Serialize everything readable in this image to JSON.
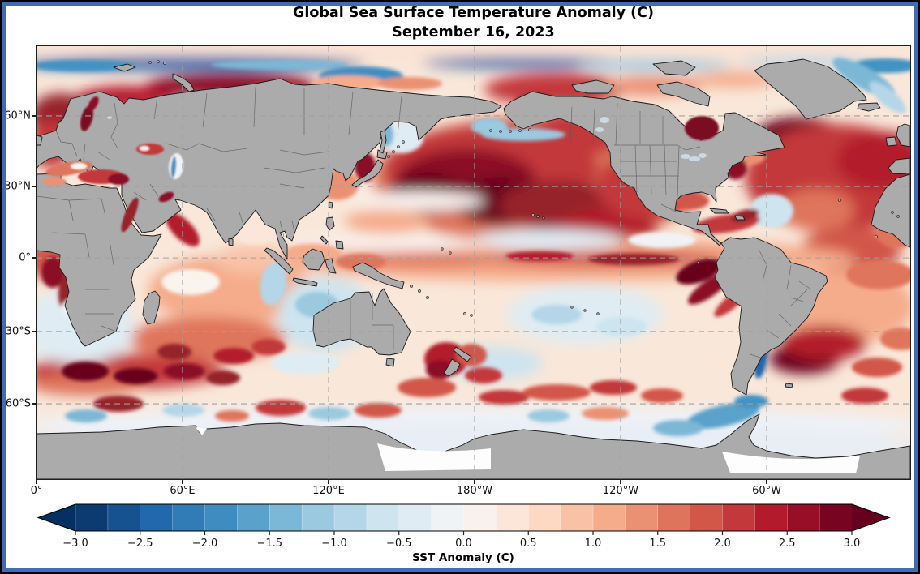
{
  "figure": {
    "title_line1": "Global Sea Surface Temperature Anomaly (C)",
    "title_line2": "September 16, 2023"
  },
  "map": {
    "land_color": "#ababab",
    "coast_color": "#1a1a1a",
    "inner_border_color": "#575757",
    "ocean_base_color": "#f9e7d9",
    "grid_color": "#a0a0a0",
    "yaxis": [
      {
        "label": "60°N",
        "pct": 16.1
      },
      {
        "label": "30°N",
        "pct": 32.4
      },
      {
        "label": "0°",
        "pct": 48.9
      },
      {
        "label": "30°S",
        "pct": 65.9
      },
      {
        "label": "60°S",
        "pct": 82.6
      }
    ],
    "xaxis": [
      {
        "label": "0°",
        "pct": 0.0
      },
      {
        "label": "60°E",
        "pct": 16.71
      },
      {
        "label": "120°E",
        "pct": 33.43
      },
      {
        "label": "180°W",
        "pct": 50.14
      },
      {
        "label": "120°W",
        "pct": 66.85
      },
      {
        "label": "60°W",
        "pct": 83.57
      }
    ],
    "blob_fields": "cx,cy,rx,ry,rotate,fill,soft_blur",
    "ocean_blobs": [
      [
        539,
        8,
        560,
        12,
        0,
        "#fbe3d4",
        1
      ],
      [
        190,
        21,
        215,
        9,
        0,
        "#2166ac",
        1
      ],
      [
        55,
        24,
        65,
        7,
        0,
        "#4393c3",
        0
      ],
      [
        300,
        23,
        85,
        6,
        0,
        "#7bb7d6",
        0
      ],
      [
        400,
        37,
        52,
        12,
        0,
        "#3f8dc0",
        0
      ],
      [
        600,
        20,
        125,
        7,
        0,
        "#2166ac",
        1
      ],
      [
        762,
        23,
        95,
        7,
        0,
        "#9ac9e0",
        1
      ],
      [
        950,
        19,
        85,
        6,
        0,
        "#b4d6e8",
        1
      ],
      [
        1046,
        24,
        42,
        9,
        0,
        "#4393c3",
        0
      ],
      [
        240,
        48,
        105,
        15,
        0,
        "#8c1127",
        1
      ],
      [
        110,
        63,
        60,
        14,
        0,
        "#b2182b",
        1
      ],
      [
        60,
        95,
        26,
        15,
        0,
        "#b2182b",
        0
      ],
      [
        300,
        53,
        42,
        10,
        0,
        "#c3393b",
        0
      ],
      [
        385,
        45,
        46,
        9,
        0,
        "#f5ac8b",
        0
      ],
      [
        460,
        46,
        40,
        8,
        0,
        "#eb9173",
        0
      ],
      [
        640,
        53,
        88,
        20,
        0,
        "#c3393b",
        1
      ],
      [
        615,
        69,
        26,
        10,
        0,
        "#96202c",
        0
      ],
      [
        760,
        49,
        62,
        12,
        0,
        "#eb9173",
        1
      ],
      [
        862,
        41,
        52,
        10,
        0,
        "#f5ac8b",
        1
      ],
      [
        30,
        86,
        38,
        28,
        0,
        "#96202c",
        1
      ],
      [
        18,
        121,
        26,
        30,
        0,
        "#c3393b",
        1
      ],
      [
        1020,
        39,
        44,
        13,
        30,
        "#7bb7d6",
        0
      ],
      [
        1049,
        63,
        28,
        10,
        40,
        "#b4d6e8",
        0
      ],
      [
        940,
        113,
        56,
        25,
        0,
        "#67001f",
        1
      ],
      [
        985,
        162,
        112,
        66,
        0,
        "#c3393b",
        1
      ],
      [
        1042,
        141,
        56,
        36,
        0,
        "#b31b2c",
        1
      ],
      [
        962,
        202,
        46,
        26,
        0,
        "#df745c",
        1
      ],
      [
        906,
        203,
        27,
        21,
        0,
        "#cee4ef",
        0
      ],
      [
        1062,
        231,
        26,
        18,
        0,
        "#df745c",
        0
      ],
      [
        1004,
        252,
        62,
        30,
        0,
        "#d25749",
        1
      ],
      [
        1040,
        282,
        42,
        18,
        0,
        "#df745c",
        0
      ],
      [
        872,
        137,
        26,
        10,
        0,
        "#eb9173",
        0
      ],
      [
        850,
        219,
        42,
        11,
        -8,
        "#c3393b",
        0
      ],
      [
        806,
        191,
        23,
        10,
        0,
        "#d25749",
        0
      ],
      [
        873,
        209,
        18,
        7,
        -15,
        "#96202c",
        0
      ],
      [
        862,
        151,
        14,
        13,
        -30,
        "#8c1127",
        0
      ],
      [
        620,
        166,
        205,
        80,
        0,
        "#df745c",
        1
      ],
      [
        560,
        151,
        132,
        54,
        0,
        "#c3393b",
        1
      ],
      [
        530,
        166,
        86,
        40,
        0,
        "#8c1127",
        1
      ],
      [
        576,
        191,
        62,
        30,
        0,
        "#67001f",
        1
      ],
      [
        480,
        181,
        46,
        26,
        0,
        "#67001f",
        1
      ],
      [
        642,
        196,
        72,
        31,
        0,
        "#96202c",
        1
      ],
      [
        702,
        226,
        62,
        26,
        0,
        "#b31b2c",
        1
      ],
      [
        752,
        172,
        62,
        42,
        0,
        "#c3393b",
        1
      ],
      [
        670,
        106,
        56,
        29,
        0,
        "#c3393b",
        1
      ],
      [
        600,
        109,
        52,
        8,
        0,
        "#9ac9e0",
        0
      ],
      [
        558,
        99,
        23,
        10,
        0,
        "#9ac9e0",
        0
      ],
      [
        450,
        113,
        27,
        19,
        0,
        "#dfecf3",
        0
      ],
      [
        432,
        109,
        8,
        15,
        0,
        "#7bb7d6",
        0
      ],
      [
        408,
        101,
        19,
        8,
        0,
        "#4393c3",
        0
      ],
      [
        405,
        149,
        13,
        18,
        0,
        "#8c1127",
        0
      ],
      [
        371,
        171,
        26,
        19,
        0,
        "#eb9173",
        0
      ],
      [
        470,
        191,
        82,
        12,
        0,
        "#f8f1ed",
        1
      ],
      [
        432,
        216,
        52,
        15,
        0,
        "#f5ac8b",
        1
      ],
      [
        650,
        263,
        360,
        27,
        0,
        "#f5ac8b",
        1
      ],
      [
        480,
        263,
        92,
        9,
        0,
        "#df745c",
        1
      ],
      [
        702,
        262,
        152,
        10,
        0,
        "#d25749",
        1
      ],
      [
        620,
        259,
        42,
        6,
        0,
        "#b31b2c",
        0
      ],
      [
        736,
        263,
        56,
        7,
        0,
        "#96202c",
        0
      ],
      [
        816,
        278,
        29,
        13,
        -20,
        "#67001f",
        0
      ],
      [
        829,
        299,
        31,
        10,
        -35,
        "#8c1127",
        0
      ],
      [
        856,
        316,
        26,
        8,
        -40,
        "#c3393b",
        0
      ],
      [
        631,
        239,
        92,
        13,
        0,
        "#dfecf3",
        1
      ],
      [
        771,
        239,
        42,
        10,
        0,
        "#eff3f6",
        0
      ],
      [
        430,
        243,
        122,
        10,
        0,
        "#f8f1ed",
        1
      ],
      [
        400,
        266,
        31,
        10,
        0,
        "#df745c",
        0
      ],
      [
        340,
        256,
        36,
        12,
        0,
        "#f5ac8b",
        0
      ],
      [
        676,
        331,
        96,
        36,
        0,
        "#dfecf3",
        1
      ],
      [
        641,
        331,
        31,
        12,
        0,
        "#b4d6e8",
        0
      ],
      [
        721,
        346,
        31,
        12,
        0,
        "#cee4ef",
        0
      ],
      [
        562,
        391,
        62,
        21,
        0,
        "#cee4ef",
        1
      ],
      [
        505,
        386,
        27,
        21,
        0,
        "#b31b2c",
        0
      ],
      [
        497,
        399,
        17,
        12,
        0,
        "#8c1127",
        0
      ],
      [
        536,
        381,
        19,
        14,
        0,
        "#d25749",
        0
      ],
      [
        551,
        406,
        23,
        10,
        0,
        "#c3393b",
        0
      ],
      [
        481,
        421,
        36,
        12,
        0,
        "#d25749",
        0
      ],
      [
        576,
        433,
        31,
        9,
        0,
        "#c3393b",
        0
      ],
      [
        641,
        427,
        42,
        10,
        0,
        "#d25749",
        0
      ],
      [
        711,
        421,
        29,
        9,
        0,
        "#c3393b",
        0
      ],
      [
        771,
        431,
        26,
        9,
        0,
        "#d25749",
        0
      ],
      [
        240,
        301,
        102,
        43,
        0,
        "#f5ac8b",
        1
      ],
      [
        190,
        291,
        36,
        16,
        0,
        "#faf4ee",
        0
      ],
      [
        266,
        263,
        46,
        18,
        0,
        "#f9c2a7",
        1
      ],
      [
        270,
        231,
        23,
        14,
        0,
        "#fbe6d9",
        0
      ],
      [
        180,
        226,
        27,
        12,
        45,
        "#b31b2c",
        0
      ],
      [
        210,
        361,
        97,
        27,
        0,
        "#df745c",
        1
      ],
      [
        170,
        377,
        21,
        10,
        0,
        "#96202c",
        0
      ],
      [
        243,
        382,
        25,
        10,
        0,
        "#b31b2c",
        0
      ],
      [
        286,
        371,
        21,
        10,
        0,
        "#c3393b",
        0
      ],
      [
        356,
        331,
        59,
        47,
        0,
        "#cee4ef",
        1
      ],
      [
        346,
        319,
        27,
        16,
        0,
        "#9ac9e0",
        0
      ],
      [
        292,
        293,
        16,
        27,
        10,
        "#b4d6e8",
        0
      ],
      [
        331,
        391,
        42,
        14,
        0,
        "#dfecf3",
        0
      ],
      [
        110,
        401,
        122,
        21,
        0,
        "#c3393b",
        1
      ],
      [
        60,
        401,
        29,
        12,
        0,
        "#67001f",
        0
      ],
      [
        122,
        407,
        27,
        10,
        0,
        "#67001f",
        0
      ],
      [
        182,
        401,
        25,
        10,
        0,
        "#8c1127",
        0
      ],
      [
        230,
        409,
        21,
        9,
        0,
        "#96202c",
        0
      ],
      [
        30,
        263,
        46,
        27,
        0,
        "#d25749",
        1
      ],
      [
        20,
        279,
        14,
        19,
        0,
        "#8c1127",
        0
      ],
      [
        38,
        303,
        11,
        23,
        5,
        "#96202c",
        0
      ],
      [
        50,
        346,
        72,
        46,
        0,
        "#dfecf3",
        1
      ],
      [
        62,
        323,
        31,
        15,
        0,
        "#eff3f6",
        0
      ],
      [
        62,
        417,
        72,
        14,
        0,
        "#df745c",
        1
      ],
      [
        1000,
        321,
        82,
        46,
        0,
        "#f5ac8b",
        1
      ],
      [
        946,
        386,
        43,
        18,
        0,
        "#67001f",
        1
      ],
      [
        971,
        366,
        52,
        21,
        0,
        "#b31b2c",
        1
      ],
      [
        893,
        383,
        8,
        27,
        8,
        "#2166ac",
        0
      ],
      [
        912,
        353,
        10,
        14,
        -20,
        "#4393c3",
        0
      ],
      [
        1036,
        396,
        31,
        12,
        0,
        "#d25749",
        0
      ],
      [
        1066,
        361,
        26,
        14,
        0,
        "#df745c",
        0
      ],
      [
        1021,
        431,
        29,
        10,
        0,
        "#c3393b",
        0
      ],
      [
        539,
        467,
        560,
        23,
        0,
        "#eef2f7",
        1
      ],
      [
        539,
        494,
        560,
        29,
        0,
        "#e8eef5",
        1
      ],
      [
        846,
        456,
        46,
        13,
        -12,
        "#5aa2cb",
        0
      ],
      [
        791,
        471,
        31,
        10,
        0,
        "#7bb7d6",
        0
      ],
      [
        881,
        438,
        21,
        8,
        0,
        "#4393c3",
        0
      ],
      [
        301,
        446,
        31,
        10,
        0,
        "#c3393b",
        0
      ],
      [
        361,
        453,
        26,
        8,
        0,
        "#9ac9e0",
        0
      ],
      [
        421,
        449,
        29,
        9,
        0,
        "#d25749",
        0
      ],
      [
        181,
        449,
        26,
        8,
        0,
        "#b4d6e8",
        0
      ],
      [
        241,
        456,
        21,
        7,
        0,
        "#df745c",
        0
      ],
      [
        631,
        456,
        26,
        8,
        0,
        "#9ac9e0",
        0
      ],
      [
        701,
        453,
        29,
        8,
        0,
        "#eb9173",
        0
      ],
      [
        101,
        441,
        31,
        10,
        0,
        "#96202c",
        0
      ],
      [
        61,
        456,
        26,
        8,
        0,
        "#7bb7d6",
        0
      ]
    ],
    "sea_overlays": [
      [
        40,
        151,
        29,
        8,
        -10,
        "#df745c"
      ],
      [
        80,
        161,
        29,
        9,
        0,
        "#c3393b"
      ],
      [
        101,
        164,
        13,
        7,
        0,
        "#8c1127"
      ],
      [
        52,
        148,
        10,
        4,
        0,
        "#faf4ee"
      ],
      [
        22,
        167,
        15,
        5,
        0,
        "#eb9173"
      ],
      [
        140,
        127,
        17,
        7,
        0,
        "#c3393b"
      ],
      [
        133,
        126,
        6,
        3,
        0,
        "#f8f1ed"
      ],
      [
        172,
        148,
        9,
        16,
        5,
        "#eff3f6"
      ],
      [
        169,
        149,
        3,
        13,
        5,
        "#4393c3"
      ],
      [
        62,
        89,
        7,
        16,
        15,
        "#7a0e22"
      ],
      [
        70,
        71,
        5,
        10,
        30,
        "#8c1127"
      ],
      [
        115,
        208,
        6,
        23,
        23,
        "#96202c"
      ],
      [
        160,
        186,
        10,
        5,
        -25,
        "#8c1127"
      ],
      [
        820,
        101,
        21,
        15,
        0,
        "#7a0e22"
      ]
    ]
  },
  "colorbar": {
    "title": "SST Anomaly (C)",
    "ticks": [
      "−3.0",
      "−2.5",
      "−2.0",
      "−1.5",
      "−1.0",
      "−0.5",
      "0.0",
      "0.5",
      "1.0",
      "1.5",
      "2.0",
      "2.5",
      "3.0"
    ],
    "segment_colors": [
      "#0b3b71",
      "#175290",
      "#2268ad",
      "#317bb7",
      "#3f8dc0",
      "#5aa2cb",
      "#7bb7d6",
      "#9ac9e0",
      "#b4d6e8",
      "#cee4ef",
      "#dfecf3",
      "#eff3f6",
      "#f8f1ed",
      "#fbe6d9",
      "#fdd9c4",
      "#f9c2a7",
      "#f5ac8b",
      "#eb9173",
      "#df745c",
      "#d25749",
      "#c3393b",
      "#b31b2c",
      "#960f27",
      "#770522"
    ],
    "under_color": "#053061",
    "over_color": "#67001f",
    "outline_color": "#000000"
  },
  "frame": {
    "outer_color": "#000000",
    "inner_color": "#3f6cb5"
  },
  "chart_data": {
    "type": "heatmap",
    "title": "Global Sea Surface Temperature Anomaly (C)",
    "subtitle": "September 16, 2023",
    "projection": "equirectangular world map, longitude 0° eastward to 360°, latitude 90°N to 90°S",
    "xlabel": "",
    "ylabel": "",
    "lat_ticks": [
      "60°N",
      "30°N",
      "0°",
      "30°S",
      "60°S"
    ],
    "lon_ticks": [
      "0°",
      "60°E",
      "120°E",
      "180°W",
      "120°W",
      "60°W"
    ],
    "grid": "dashed gray graticule every 60° longitude / 30° latitude",
    "colorbar": {
      "label": "SST Anomaly (C)",
      "min": -3.0,
      "max": 3.0,
      "tick_step": 0.5,
      "segment_step": 0.25,
      "extend": "both",
      "palette": "RdBu reversed (dark blue = cold anomaly, white = neutral, dark red = warm anomaly)"
    },
    "notable_anomalies": [
      {
        "region": "Northwest Pacific / Kuroshio extension east of Japan",
        "anomaly_C": "+2.5 to >+3"
      },
      {
        "region": "Eastern equatorial Pacific El Niño tongue off Peru",
        "anomaly_C": "+2 to >+3"
      },
      {
        "region": "Northwest Atlantic off Newfoundland / Gulf Stream",
        "anomaly_C": "+2.5 to >+3"
      },
      {
        "region": "Barents, Kara and Baltic Seas; Hudson Bay",
        "anomaly_C": "+2 to >+3"
      },
      {
        "region": "Agulhas eddies south of Africa and Brazil–Malvinas confluence",
        "anomaly_C": "+2 to >+3"
      },
      {
        "region": "Arctic sea-ice edge band",
        "anomaly_C": "-1 to -2.5"
      },
      {
        "region": "Southeast Indian Ocean west of Australia",
        "anomaly_C": "-0.5 to -1"
      },
      {
        "region": "Southern Ocean fringe near Antarctica",
        "anomaly_C": "0 to -0.5"
      }
    ]
  }
}
